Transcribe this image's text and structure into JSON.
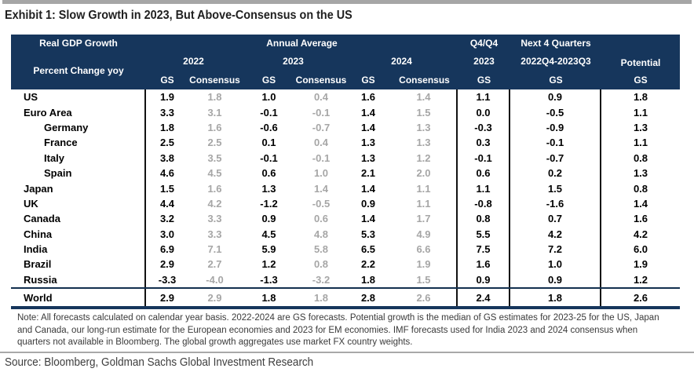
{
  "title": "Exhibit 1: Slow Growth in 2023, But Above-Consensus on the US",
  "source": "Source: Bloomberg, Goldman Sachs Global Investment Research",
  "note": "Note: All forecasts calculated on calendar year basis. 2022-2024 are GS forecasts. Potential growth is the median of GS estimates for 2023-25 for the US, Japan and Canada, our long-run estimate for the European economies and 2023 for EM economies. IMF forecasts used for India 2023 and 2024 consensus when quarters not available in Bloomberg. The global growth aggregates use market FX country weights.",
  "colors": {
    "header_bg": "#16365c",
    "consensus_text": "#a6a6a6",
    "accent_rule": "#16365c",
    "top_bar": "#a6a6a6"
  },
  "table": {
    "header": {
      "row1_left": "Real GDP Growth",
      "row2_left": "Percent Change yoy",
      "annual_average": "Annual Average",
      "q4q4_line1": "Q4/Q4",
      "q4q4_line2": "2023",
      "next4_line1": "Next 4 Quarters",
      "next4_line2": "2022Q4-2023Q3",
      "potential": "Potential",
      "y2022": "2022",
      "y2023": "2023",
      "y2024": "2024",
      "gs": "GS",
      "consensus": "Consensus"
    },
    "columns": [
      "Country",
      "2022 GS",
      "2022 Consensus",
      "2023 GS",
      "2023 Consensus",
      "2024 GS",
      "2024 Consensus",
      "Q4/Q4 2023 GS",
      "Next 4 Quarters 2022Q4-2023Q3 GS",
      "Potential GS"
    ],
    "rows": [
      {
        "name": "US",
        "indent": false,
        "values": [
          "1.9",
          "1.8",
          "1.0",
          "0.4",
          "1.6",
          "1.4",
          "1.1",
          "0.9",
          "1.8"
        ]
      },
      {
        "name": "Euro Area",
        "indent": false,
        "values": [
          "3.3",
          "3.1",
          "-0.1",
          "-0.1",
          "1.4",
          "1.5",
          "0.0",
          "-0.5",
          "1.1"
        ]
      },
      {
        "name": "Germany",
        "indent": true,
        "values": [
          "1.8",
          "1.6",
          "-0.6",
          "-0.7",
          "1.4",
          "1.3",
          "-0.3",
          "-0.9",
          "1.3"
        ]
      },
      {
        "name": "France",
        "indent": true,
        "values": [
          "2.5",
          "2.5",
          "0.1",
          "0.4",
          "1.3",
          "1.3",
          "0.3",
          "-0.1",
          "1.1"
        ]
      },
      {
        "name": "Italy",
        "indent": true,
        "values": [
          "3.8",
          "3.5",
          "-0.1",
          "-0.1",
          "1.3",
          "1.2",
          "-0.1",
          "-0.7",
          "0.8"
        ]
      },
      {
        "name": "Spain",
        "indent": true,
        "values": [
          "4.6",
          "4.5",
          "0.6",
          "1.0",
          "2.1",
          "2.0",
          "0.6",
          "0.2",
          "1.3"
        ]
      },
      {
        "name": "Japan",
        "indent": false,
        "values": [
          "1.5",
          "1.6",
          "1.3",
          "1.4",
          "1.4",
          "1.1",
          "1.1",
          "1.5",
          "0.8"
        ]
      },
      {
        "name": "UK",
        "indent": false,
        "values": [
          "4.4",
          "4.2",
          "-1.2",
          "-0.5",
          "0.9",
          "1.1",
          "-0.8",
          "-1.6",
          "1.4"
        ]
      },
      {
        "name": "Canada",
        "indent": false,
        "values": [
          "3.2",
          "3.3",
          "0.9",
          "0.6",
          "1.4",
          "1.7",
          "0.8",
          "0.7",
          "1.6"
        ]
      },
      {
        "name": "China",
        "indent": false,
        "values": [
          "3.0",
          "3.3",
          "4.5",
          "4.8",
          "5.3",
          "4.9",
          "5.5",
          "4.2",
          "4.2"
        ]
      },
      {
        "name": "India",
        "indent": false,
        "values": [
          "6.9",
          "7.1",
          "5.9",
          "5.8",
          "6.5",
          "6.6",
          "7.5",
          "7.2",
          "6.0"
        ]
      },
      {
        "name": "Brazil",
        "indent": false,
        "values": [
          "2.9",
          "2.7",
          "1.2",
          "0.8",
          "2.2",
          "1.9",
          "1.6",
          "1.0",
          "1.9"
        ]
      },
      {
        "name": "Russia",
        "indent": false,
        "values": [
          "-3.3",
          "-4.0",
          "-1.3",
          "-3.2",
          "1.8",
          "1.5",
          "0.9",
          "0.9",
          "1.2"
        ]
      }
    ],
    "world": {
      "name": "World",
      "indent": false,
      "values": [
        "2.9",
        "2.9",
        "1.8",
        "1.8",
        "2.8",
        "2.6",
        "2.4",
        "1.8",
        "2.6"
      ]
    }
  }
}
